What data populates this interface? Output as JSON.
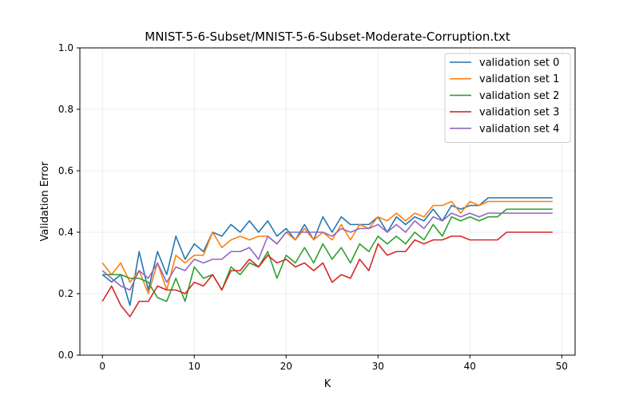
{
  "chart_data": {
    "type": "line",
    "title": "MNIST-5-6-Subset/MNIST-5-6-Subset-Moderate-Corruption.txt",
    "xlabel": "K",
    "ylabel": "Validation Error",
    "xlim": [
      -2.45,
      51.45
    ],
    "ylim": [
      0.0,
      1.0
    ],
    "xticks": [
      0,
      10,
      20,
      30,
      40,
      50
    ],
    "yticks": [
      0.0,
      0.2,
      0.4,
      0.6,
      0.8,
      1.0
    ],
    "xtick_labels": [
      "0",
      "10",
      "20",
      "30",
      "40",
      "50"
    ],
    "ytick_labels": [
      "0.0",
      "0.2",
      "0.4",
      "0.6",
      "0.8",
      "1.0"
    ],
    "grid": true,
    "legend_position": "top-right",
    "x": [
      0,
      1,
      2,
      3,
      4,
      5,
      6,
      7,
      8,
      9,
      10,
      11,
      12,
      13,
      14,
      15,
      16,
      17,
      18,
      19,
      20,
      21,
      22,
      23,
      24,
      25,
      26,
      27,
      28,
      29,
      30,
      31,
      32,
      33,
      34,
      35,
      36,
      37,
      38,
      39,
      40,
      41,
      42,
      43,
      44,
      45,
      46,
      47,
      48,
      49
    ],
    "series": [
      {
        "name": "validation set 0",
        "color": "#1f77b4",
        "values": [
          0.262,
          0.238,
          0.262,
          0.162,
          0.337,
          0.212,
          0.337,
          0.262,
          0.387,
          0.312,
          0.362,
          0.337,
          0.4,
          0.387,
          0.425,
          0.4,
          0.437,
          0.4,
          0.437,
          0.387,
          0.412,
          0.375,
          0.425,
          0.375,
          0.45,
          0.4,
          0.45,
          0.425,
          0.425,
          0.425,
          0.45,
          0.4,
          0.45,
          0.425,
          0.45,
          0.437,
          0.475,
          0.437,
          0.487,
          0.475,
          0.487,
          0.487,
          0.512,
          0.512,
          0.512,
          0.512,
          0.512,
          0.512,
          0.512,
          0.512
        ]
      },
      {
        "name": "validation set 1",
        "color": "#ff7f0e",
        "values": [
          0.3,
          0.262,
          0.3,
          0.237,
          0.275,
          0.2,
          0.3,
          0.212,
          0.325,
          0.3,
          0.325,
          0.325,
          0.4,
          0.35,
          0.375,
          0.387,
          0.375,
          0.387,
          0.387,
          0.362,
          0.4,
          0.375,
          0.412,
          0.375,
          0.4,
          0.375,
          0.425,
          0.375,
          0.425,
          0.412,
          0.45,
          0.437,
          0.462,
          0.437,
          0.462,
          0.45,
          0.487,
          0.487,
          0.5,
          0.462,
          0.5,
          0.487,
          0.5,
          0.5,
          0.5,
          0.5,
          0.5,
          0.5,
          0.5,
          0.5
        ]
      },
      {
        "name": "validation set 2",
        "color": "#2ca02c",
        "values": [
          0.262,
          0.262,
          0.262,
          0.25,
          0.25,
          0.237,
          0.187,
          0.175,
          0.25,
          0.175,
          0.287,
          0.25,
          0.262,
          0.212,
          0.287,
          0.262,
          0.3,
          0.287,
          0.337,
          0.25,
          0.325,
          0.3,
          0.35,
          0.3,
          0.362,
          0.312,
          0.35,
          0.3,
          0.362,
          0.337,
          0.387,
          0.362,
          0.387,
          0.362,
          0.4,
          0.375,
          0.425,
          0.387,
          0.45,
          0.437,
          0.45,
          0.437,
          0.45,
          0.45,
          0.475,
          0.475,
          0.475,
          0.475,
          0.475,
          0.475
        ]
      },
      {
        "name": "validation set 3",
        "color": "#d62728",
        "values": [
          0.175,
          0.225,
          0.162,
          0.125,
          0.175,
          0.175,
          0.225,
          0.212,
          0.212,
          0.2,
          0.237,
          0.225,
          0.262,
          0.212,
          0.275,
          0.275,
          0.312,
          0.287,
          0.325,
          0.3,
          0.312,
          0.287,
          0.3,
          0.275,
          0.3,
          0.237,
          0.262,
          0.25,
          0.312,
          0.275,
          0.362,
          0.325,
          0.337,
          0.337,
          0.375,
          0.362,
          0.375,
          0.375,
          0.387,
          0.387,
          0.375,
          0.375,
          0.375,
          0.375,
          0.4,
          0.4,
          0.4,
          0.4,
          0.4,
          0.4
        ]
      },
      {
        "name": "validation set 4",
        "color": "#9467bd",
        "values": [
          0.275,
          0.25,
          0.225,
          0.212,
          0.275,
          0.25,
          0.3,
          0.237,
          0.287,
          0.275,
          0.312,
          0.3,
          0.312,
          0.312,
          0.337,
          0.337,
          0.35,
          0.312,
          0.387,
          0.362,
          0.4,
          0.4,
          0.4,
          0.4,
          0.4,
          0.387,
          0.412,
          0.4,
          0.412,
          0.412,
          0.425,
          0.4,
          0.425,
          0.4,
          0.437,
          0.412,
          0.45,
          0.437,
          0.462,
          0.45,
          0.462,
          0.45,
          0.462,
          0.462,
          0.462,
          0.462,
          0.462,
          0.462,
          0.462,
          0.462
        ]
      }
    ]
  }
}
